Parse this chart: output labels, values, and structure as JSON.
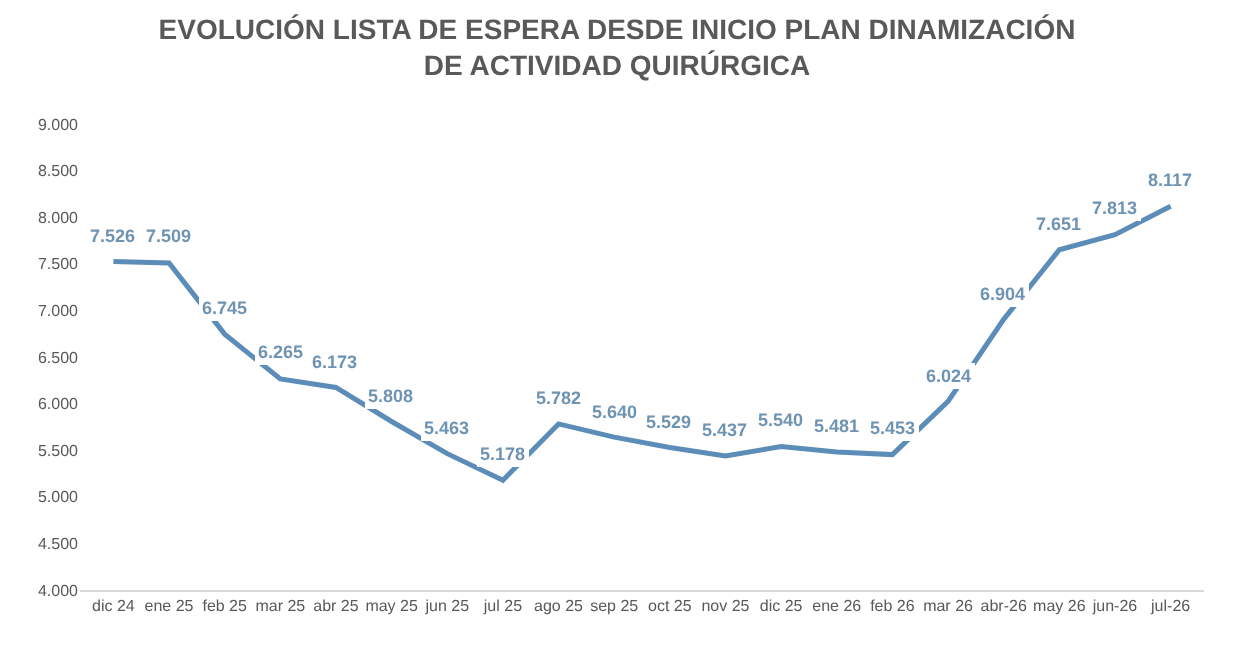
{
  "chart_data": {
    "type": "line",
    "title": "EVOLUCIÓN LISTA DE ESPERA DESDE INICIO PLAN DINAMIZACIÓN\nDE ACTIVIDAD QUIRÚRGICA",
    "categories": [
      "dic 24",
      "ene 25",
      "feb 25",
      "mar 25",
      "abr 25",
      "may 25",
      "jun 25",
      "jul 25",
      "ago 25",
      "sep 25",
      "oct 25",
      "nov 25",
      "dic 25",
      "ene 26",
      "feb 26",
      "mar 26",
      "abr-26",
      "may 26",
      "jun-26",
      "jul-26"
    ],
    "series": [
      {
        "color": "#5b8db8",
        "values": [
          7526,
          7509,
          6745,
          6265,
          6173,
          5808,
          5463,
          5178,
          5782,
          5640,
          5529,
          5437,
          5540,
          5481,
          5453,
          6024,
          6904,
          7651,
          7813,
          8117
        ],
        "value_labels": [
          "7.526",
          "7.509",
          "6.745",
          "6.265",
          "6.173",
          "5.808",
          "5.463",
          "5.178",
          "5.782",
          "5.640",
          "5.529",
          "5.437",
          "5.540",
          "5.481",
          "5.453",
          "6.024",
          "6.904",
          "7.651",
          "7.813",
          "8.117"
        ]
      }
    ],
    "ylim": [
      4000,
      9000
    ],
    "yticks": [
      {
        "value": 4000,
        "label": "4.000"
      },
      {
        "value": 4500,
        "label": "4.500"
      },
      {
        "value": 5000,
        "label": "5.000"
      },
      {
        "value": 5500,
        "label": "5.500"
      },
      {
        "value": 6000,
        "label": "6.000"
      },
      {
        "value": 6500,
        "label": "6.500"
      },
      {
        "value": 7000,
        "label": "7.000"
      },
      {
        "value": 7500,
        "label": "7.500"
      },
      {
        "value": 8000,
        "label": "8.000"
      },
      {
        "value": 8500,
        "label": "8.500"
      },
      {
        "value": 9000,
        "label": "9.000"
      }
    ],
    "grid": false,
    "legend": false,
    "marker": "none",
    "line_style": "solid"
  }
}
